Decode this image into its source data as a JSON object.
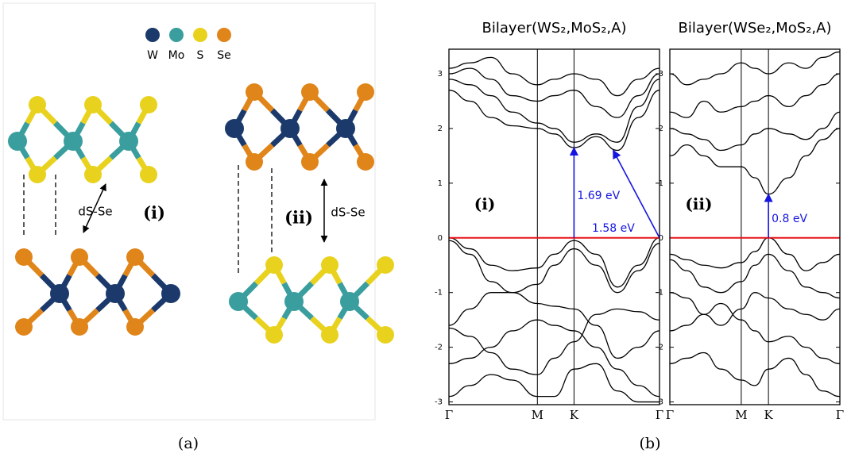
{
  "structure": {
    "legend": [
      {
        "label": "W",
        "color": "#1b3a6b"
      },
      {
        "label": "Mo",
        "color": "#3a9e9e"
      },
      {
        "label": "S",
        "color": "#e8d21e"
      },
      {
        "label": "Se",
        "color": "#e0851a"
      }
    ],
    "distance_label": "dS-Se",
    "labels": [
      "(i)",
      "(ii)"
    ]
  },
  "captions": [
    "(a)",
    "(b)"
  ],
  "chart_data": [
    {
      "type": "line",
      "title": "Bilayer(WS₂,MoS₂,A)",
      "panel_label": "(i)",
      "x": [
        0,
        0.1,
        0.2,
        0.3,
        0.42,
        0.5,
        0.594,
        0.7,
        0.8,
        0.9,
        1
      ],
      "xlim": [
        0,
        1
      ],
      "xticks": [
        {
          "value": 0,
          "label": "Γ"
        },
        {
          "value": 0.42,
          "label": "M"
        },
        {
          "value": 0.594,
          "label": "K"
        },
        {
          "value": 1,
          "label": "Γ"
        }
      ],
      "ylim": [
        -3.05,
        3.45
      ],
      "yticks": [
        -3,
        -2,
        -1,
        0,
        1,
        2,
        3
      ],
      "hline": {
        "value": 0,
        "color": "#e8141a"
      },
      "series": [
        {
          "color": "#000000",
          "values": [
            0,
            -0.2,
            -0.5,
            -0.6,
            -0.55,
            -0.3,
            -0.05,
            -0.3,
            -0.9,
            -0.5,
            0
          ]
        },
        {
          "color": "#000000",
          "values": [
            -0.05,
            -0.3,
            -0.8,
            -1.0,
            -0.85,
            -0.5,
            -0.2,
            -0.5,
            -1.0,
            -0.6,
            -0.1
          ]
        },
        {
          "color": "#000000",
          "values": [
            -1.6,
            -1.3,
            -1.0,
            -1.0,
            -1.2,
            -1.25,
            -1.3,
            -1.6,
            -2.2,
            -2.0,
            -1.7
          ]
        },
        {
          "color": "#000000",
          "values": [
            -1.65,
            -1.8,
            -2.1,
            -2.4,
            -2.5,
            -2.2,
            -1.9,
            -1.4,
            -1.3,
            -1.35,
            -1.5
          ]
        },
        {
          "color": "#000000",
          "values": [
            -2.3,
            -2.2,
            -2.0,
            -1.7,
            -1.5,
            -1.6,
            -1.7,
            -2.0,
            -2.4,
            -2.7,
            -2.9
          ]
        },
        {
          "color": "#000000",
          "values": [
            -2.9,
            -2.7,
            -2.5,
            -2.6,
            -2.9,
            -2.9,
            -2.4,
            -2.3,
            -2.8,
            -3.0,
            -3.0
          ]
        },
        {
          "color": "#000000",
          "values": [
            2.7,
            2.5,
            2.2,
            2.05,
            2.0,
            1.9,
            1.65,
            1.85,
            1.6,
            2.2,
            2.7
          ]
        },
        {
          "color": "#000000",
          "values": [
            2.9,
            2.8,
            2.6,
            2.3,
            2.1,
            2.0,
            1.75,
            1.9,
            1.75,
            2.4,
            2.9
          ]
        },
        {
          "color": "#000000",
          "values": [
            3.0,
            3.1,
            2.9,
            2.6,
            2.5,
            2.6,
            2.7,
            2.4,
            2.2,
            2.6,
            3.0
          ]
        },
        {
          "color": "#000000",
          "values": [
            3.1,
            3.2,
            3.3,
            3.0,
            2.8,
            2.9,
            3.0,
            2.9,
            2.6,
            2.9,
            3.1
          ]
        }
      ],
      "annotations": [
        {
          "text": "1.69 eV",
          "from": [
            0.594,
            0
          ],
          "to": [
            0.594,
            1.65
          ],
          "color": "#1515e0"
        },
        {
          "text": "1.58 eV",
          "from": [
            1,
            0
          ],
          "to": [
            0.78,
            1.6
          ],
          "color": "#1515e0"
        }
      ]
    },
    {
      "type": "line",
      "title": "Bilayer(WSe₂,MoS₂,A)",
      "panel_label": "(ii)",
      "x": [
        0,
        0.1,
        0.2,
        0.3,
        0.42,
        0.5,
        0.58,
        0.7,
        0.8,
        0.9,
        1
      ],
      "xlim": [
        0,
        1
      ],
      "xticks": [
        {
          "value": 0,
          "label": "Γ"
        },
        {
          "value": 0.42,
          "label": "M"
        },
        {
          "value": 0.58,
          "label": "K"
        },
        {
          "value": 1,
          "label": "Γ"
        }
      ],
      "ylim": [
        -3.05,
        3.45
      ],
      "yticks": [
        -3,
        -2,
        -1,
        0,
        1,
        2,
        3
      ],
      "hline": {
        "value": 0,
        "color": "#e8141a"
      },
      "series": [
        {
          "color": "#000000",
          "values": [
            -0.3,
            -0.4,
            -0.5,
            -0.55,
            -0.45,
            -0.25,
            0.0,
            -0.3,
            -0.6,
            -0.45,
            -0.3
          ]
        },
        {
          "color": "#000000",
          "values": [
            -0.4,
            -0.6,
            -0.9,
            -1.0,
            -0.8,
            -0.5,
            -0.3,
            -0.6,
            -0.9,
            -1.0,
            -1.1
          ]
        },
        {
          "color": "#000000",
          "values": [
            -1.0,
            -1.1,
            -1.4,
            -1.6,
            -1.3,
            -1.0,
            -1.1,
            -1.3,
            -1.4,
            -1.5,
            -1.3
          ]
        },
        {
          "color": "#000000",
          "values": [
            -1.7,
            -1.6,
            -1.4,
            -1.2,
            -1.5,
            -1.7,
            -1.9,
            -1.8,
            -2.0,
            -2.2,
            -2.3
          ]
        },
        {
          "color": "#000000",
          "values": [
            -2.3,
            -2.2,
            -2.1,
            -2.4,
            -2.6,
            -2.7,
            -2.4,
            -2.2,
            -2.5,
            -2.8,
            -2.9
          ]
        },
        {
          "color": "#000000",
          "values": [
            1.5,
            1.7,
            1.5,
            1.3,
            1.3,
            1.1,
            0.8,
            1.1,
            1.5,
            1.8,
            2.0
          ]
        },
        {
          "color": "#000000",
          "values": [
            2.0,
            1.9,
            1.8,
            1.6,
            1.7,
            1.9,
            2.0,
            1.9,
            1.8,
            2.0,
            2.3
          ]
        },
        {
          "color": "#000000",
          "values": [
            2.3,
            2.2,
            2.5,
            2.3,
            2.4,
            2.5,
            2.6,
            2.4,
            2.6,
            2.8,
            3.0
          ]
        },
        {
          "color": "#000000",
          "values": [
            3.0,
            2.8,
            2.9,
            3.0,
            3.2,
            3.1,
            3.0,
            3.2,
            3.1,
            3.3,
            3.4
          ]
        }
      ],
      "annotations": [
        {
          "text": "0.8 eV",
          "from": [
            0.58,
            0
          ],
          "to": [
            0.58,
            0.8
          ],
          "color": "#1515e0"
        }
      ]
    }
  ]
}
